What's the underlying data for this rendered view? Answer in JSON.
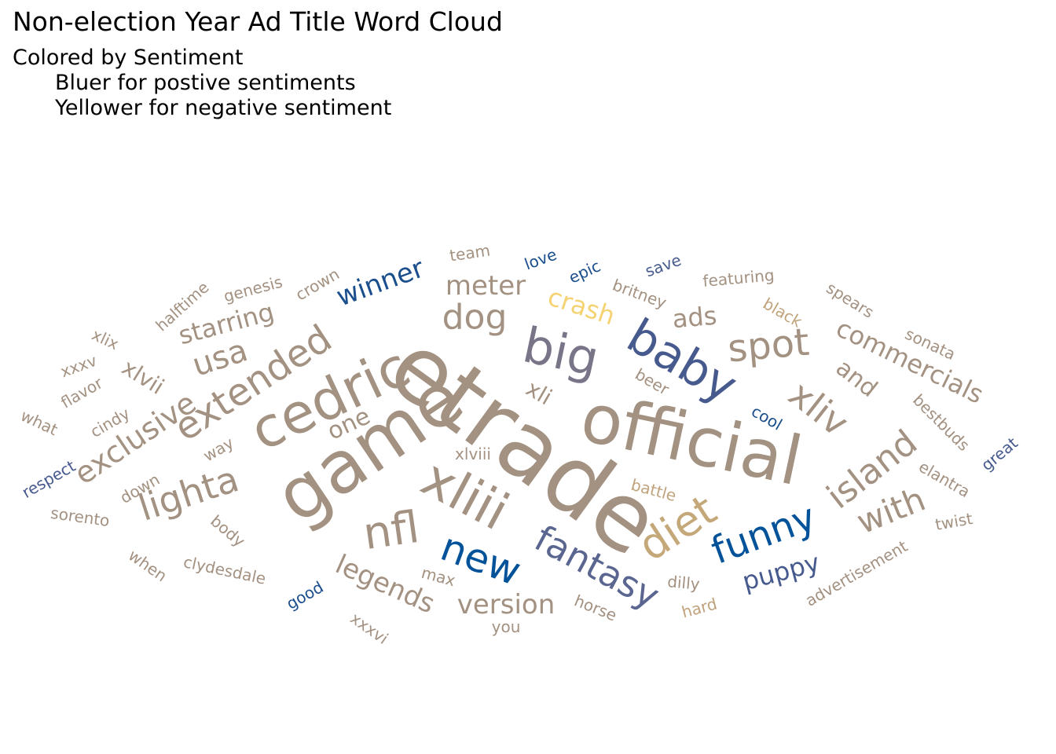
{
  "title": "Non-election Year Ad Title Word Cloud",
  "subtitle": {
    "line1": "Colored by Sentiment",
    "line2": "Bluer for postive sentiments",
    "line3": "Yellower for negative sentiment"
  },
  "colors": {
    "neutral": "#a39181",
    "blue_dark": "#02529a",
    "blue": "#1a4e8c",
    "slate": "#475a8e",
    "slate_light": "#5a6690",
    "purple_gray": "#7a7488",
    "yellow": "#f5d372",
    "gold": "#c4a87a",
    "tan": "#c0a37c"
  },
  "chart_data": {
    "type": "wordcloud",
    "words": [
      {
        "text": "etrade",
        "color": "neutral"
      },
      {
        "text": "game",
        "color": "neutral"
      },
      {
        "text": "official",
        "color": "neutral"
      },
      {
        "text": "cedric",
        "color": "neutral"
      },
      {
        "text": "xliii",
        "color": "neutral"
      },
      {
        "text": "big",
        "color": "purple_gray"
      },
      {
        "text": "baby",
        "color": "slate"
      },
      {
        "text": "nfl",
        "color": "neutral"
      },
      {
        "text": "fantasy",
        "color": "slate_light"
      },
      {
        "text": "diet",
        "color": "gold"
      },
      {
        "text": "new",
        "color": "blue_dark"
      },
      {
        "text": "funny",
        "color": "blue_dark"
      },
      {
        "text": "extended",
        "color": "neutral"
      },
      {
        "text": "spot",
        "color": "neutral"
      },
      {
        "text": "xliv",
        "color": "neutral"
      },
      {
        "text": "lighta",
        "color": "neutral"
      },
      {
        "text": "island",
        "color": "neutral"
      },
      {
        "text": "with",
        "color": "neutral"
      },
      {
        "text": "dog",
        "color": "neutral"
      },
      {
        "text": "usa",
        "color": "neutral"
      },
      {
        "text": "exclusive",
        "color": "neutral"
      },
      {
        "text": "legends",
        "color": "neutral"
      },
      {
        "text": "commercials",
        "color": "neutral"
      },
      {
        "text": "meter",
        "color": "neutral"
      },
      {
        "text": "winner",
        "color": "blue"
      },
      {
        "text": "starring",
        "color": "neutral"
      },
      {
        "text": "version",
        "color": "neutral"
      },
      {
        "text": "puppy",
        "color": "slate"
      },
      {
        "text": "crash",
        "color": "yellow"
      },
      {
        "text": "one",
        "color": "neutral"
      },
      {
        "text": "ads",
        "color": "neutral"
      },
      {
        "text": "xlvii",
        "color": "neutral"
      },
      {
        "text": "and",
        "color": "neutral"
      },
      {
        "text": "xli",
        "color": "neutral"
      },
      {
        "text": "halftime",
        "color": "neutral"
      },
      {
        "text": "genesis",
        "color": "neutral"
      },
      {
        "text": "crown",
        "color": "neutral"
      },
      {
        "text": "team",
        "color": "neutral"
      },
      {
        "text": "love",
        "color": "blue"
      },
      {
        "text": "epic",
        "color": "blue"
      },
      {
        "text": "save",
        "color": "slate"
      },
      {
        "text": "britney",
        "color": "neutral"
      },
      {
        "text": "featuring",
        "color": "neutral"
      },
      {
        "text": "spears",
        "color": "neutral"
      },
      {
        "text": "black",
        "color": "tan"
      },
      {
        "text": "sonata",
        "color": "neutral"
      },
      {
        "text": "beer",
        "color": "neutral"
      },
      {
        "text": "cool",
        "color": "blue"
      },
      {
        "text": "bestbuds",
        "color": "neutral"
      },
      {
        "text": "great",
        "color": "slate"
      },
      {
        "text": "elantra",
        "color": "neutral"
      },
      {
        "text": "twist",
        "color": "neutral"
      },
      {
        "text": "advertisement",
        "color": "neutral"
      },
      {
        "text": "battle",
        "color": "tan"
      },
      {
        "text": "xlviii",
        "color": "neutral"
      },
      {
        "text": "max",
        "color": "neutral"
      },
      {
        "text": "dilly",
        "color": "neutral"
      },
      {
        "text": "hard",
        "color": "tan"
      },
      {
        "text": "horse",
        "color": "neutral"
      },
      {
        "text": "you",
        "color": "neutral"
      },
      {
        "text": "xxxvi",
        "color": "neutral"
      },
      {
        "text": "good",
        "color": "blue"
      },
      {
        "text": "clydesdale",
        "color": "neutral"
      },
      {
        "text": "when",
        "color": "neutral"
      },
      {
        "text": "body",
        "color": "neutral"
      },
      {
        "text": "sorento",
        "color": "neutral"
      },
      {
        "text": "down",
        "color": "neutral"
      },
      {
        "text": "respect",
        "color": "slate"
      },
      {
        "text": "way",
        "color": "neutral"
      },
      {
        "text": "cindy",
        "color": "neutral"
      },
      {
        "text": "what",
        "color": "neutral"
      },
      {
        "text": "flavor",
        "color": "neutral"
      },
      {
        "text": "xxxv",
        "color": "neutral"
      },
      {
        "text": "xlix",
        "color": "neutral"
      }
    ]
  }
}
